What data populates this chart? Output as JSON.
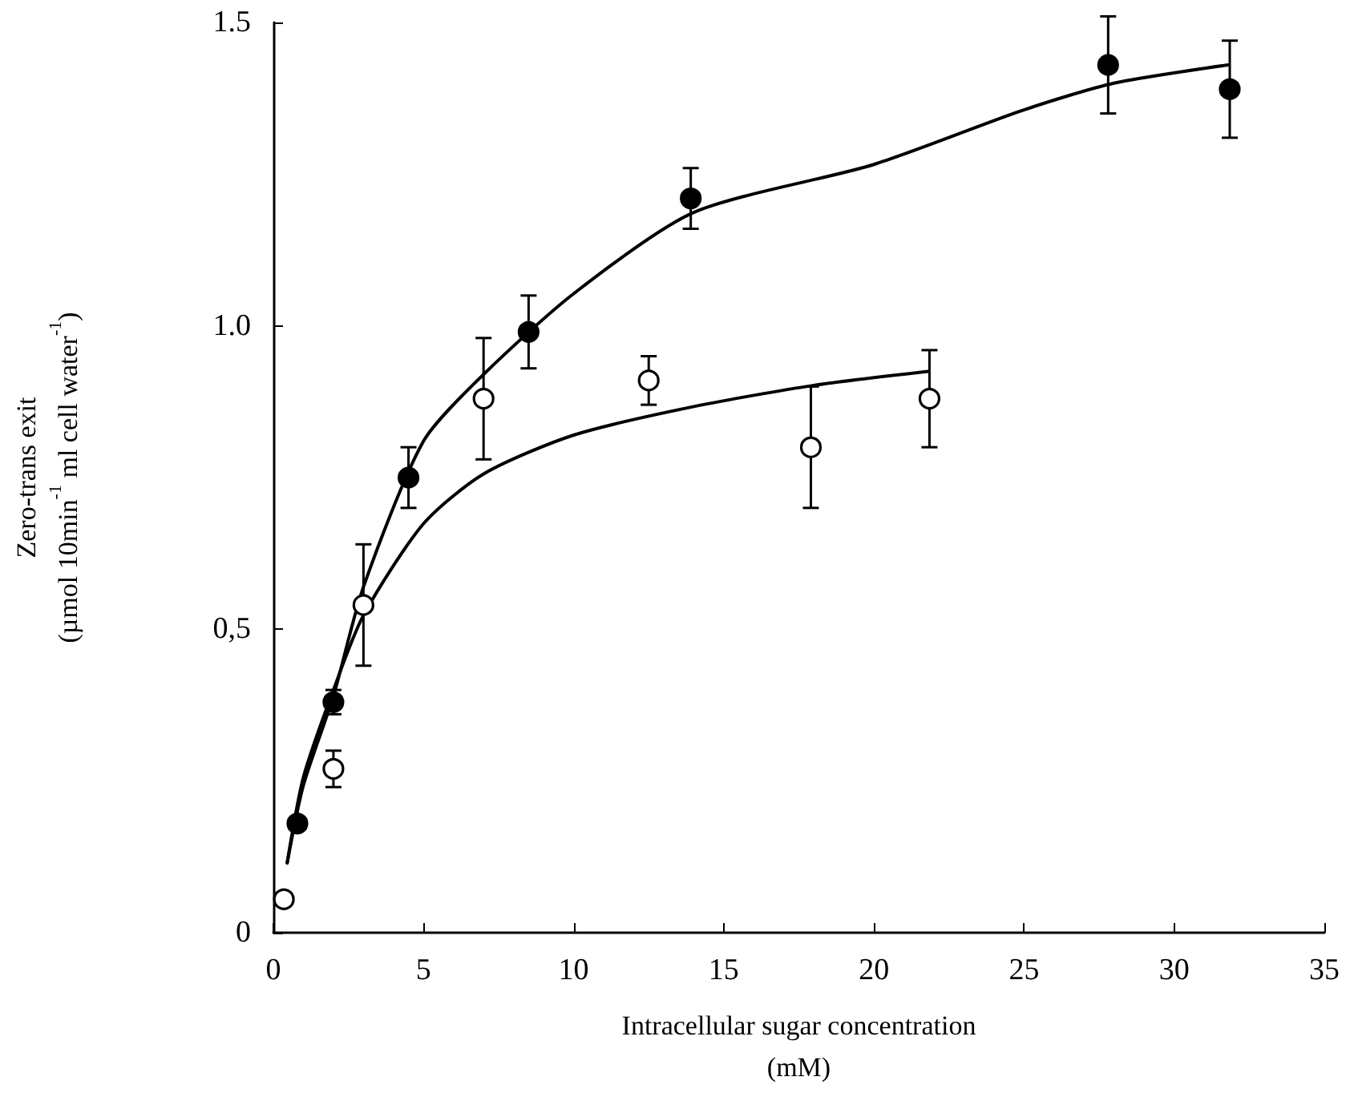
{
  "chart_data": {
    "type": "scatter",
    "xlabel": "Intracellular sugar concentration\n(mM)",
    "ylabel": "Zero-trans exit\n(µmol 10min$^{-1}$ ml cell water$^{-1}$)",
    "xlim": [
      0,
      35
    ],
    "xticks": [
      0,
      5,
      10,
      15,
      20,
      25,
      30,
      35
    ],
    "ylim": [
      0,
      1.5
    ],
    "yticks": [
      {
        "value": 0,
        "label": "0"
      },
      {
        "value": 0.5,
        "label": "0,5"
      },
      {
        "value": 1.0,
        "label": "1.0"
      },
      {
        "value": 1.5,
        "label": "1.5"
      }
    ],
    "grid": false,
    "marker": "circle",
    "series": [
      {
        "color": "#000000",
        "x": [
          0.8,
          2.0,
          4.5,
          8.5,
          13.9,
          27.8,
          31.85
        ],
        "values": [
          0.18,
          0.38,
          0.75,
          0.99,
          1.21,
          1.43,
          1.39
        ],
        "errors": [
          null,
          0.02,
          0.05,
          0.06,
          0.05,
          0.08,
          0.08
        ]
      },
      {
        "color": "#ffffff",
        "x": [
          0.35,
          2.0,
          3.0,
          7.0,
          12.5,
          17.9,
          21.85
        ],
        "values": [
          0.055,
          0.27,
          0.54,
          0.88,
          0.91,
          0.8,
          0.88
        ],
        "errors": [
          null,
          0.03,
          0.1,
          0.1,
          0.04,
          0.1,
          0.08
        ]
      },
      {
        "type": "line",
        "marker": "none",
        "color": "#000000",
        "x": [
          0.46,
          1,
          2,
          3,
          5,
          7,
          10,
          14,
          20,
          25,
          28,
          31.8
        ],
        "values": [
          0.115,
          0.243,
          0.39,
          0.57,
          0.81,
          0.92,
          1.053,
          1.187,
          1.266,
          1.356,
          1.4,
          1.43
        ]
      },
      {
        "type": "line",
        "marker": "none",
        "color": "#000000",
        "x": [
          0.46,
          1,
          2,
          3,
          5,
          7,
          10,
          14,
          18,
          21.8
        ],
        "values": [
          0.115,
          0.256,
          0.4,
          0.523,
          0.674,
          0.756,
          0.82,
          0.867,
          0.902,
          0.925
        ]
      }
    ]
  }
}
